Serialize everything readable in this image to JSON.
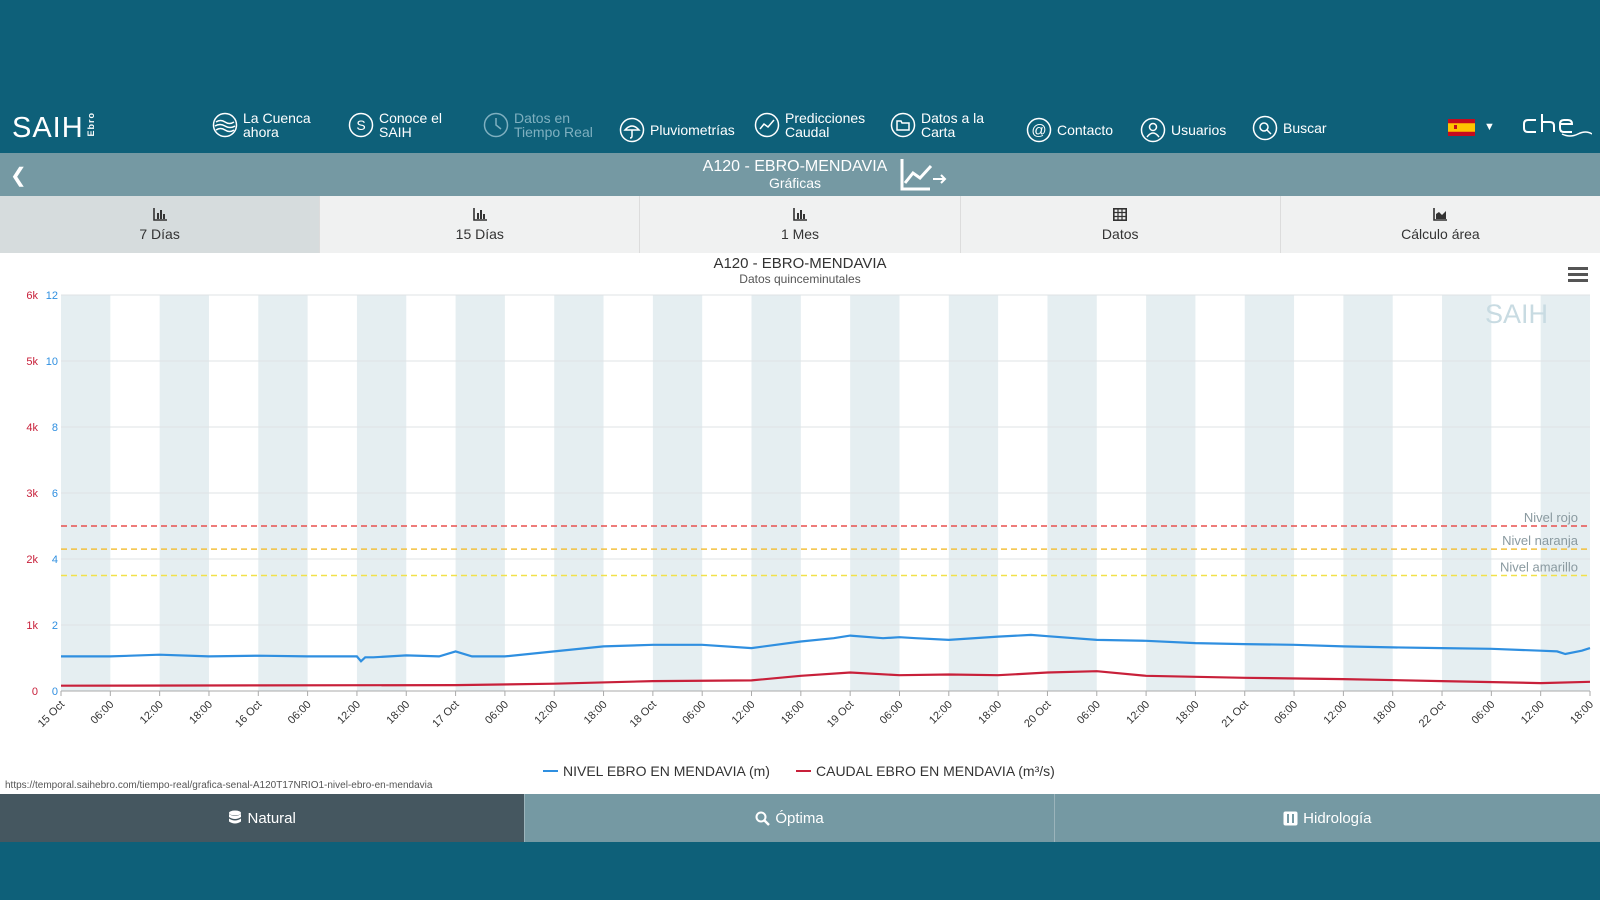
{
  "nav": {
    "logo": "SAIH",
    "logo_sub": "Ebro",
    "items": [
      {
        "line1": "La Cuenca",
        "line2": "ahora",
        "icon": "waves-icon"
      },
      {
        "line1": "Conoce el",
        "line2": "SAIH",
        "icon": "info-s-icon"
      },
      {
        "line1": "Datos en",
        "line2": "Tiempo Real",
        "icon": "clock-icon"
      },
      {
        "line1": "Pluviometrías",
        "line2": "",
        "icon": "umbrella-icon"
      },
      {
        "line1": "Predicciones",
        "line2": "Caudal",
        "icon": "trend-icon"
      },
      {
        "line1": "Datos a la",
        "line2": "Carta",
        "icon": "folder-icon"
      },
      {
        "line1": "Contacto",
        "line2": "",
        "icon": "at-icon"
      },
      {
        "line1": "Usuarios",
        "line2": "",
        "icon": "user-icon"
      },
      {
        "line1": "Buscar",
        "line2": "",
        "icon": "search-icon"
      }
    ]
  },
  "titlebar": {
    "title": "A120 - EBRO-MENDAVIA",
    "subtitle": "Gráficas"
  },
  "tabs": [
    {
      "label": "7 Días",
      "icon": "bar-chart-icon"
    },
    {
      "label": "15 Días",
      "icon": "bar-chart-icon"
    },
    {
      "label": "1 Mes",
      "icon": "bar-chart-icon"
    },
    {
      "label": "Datos",
      "icon": "table-icon"
    },
    {
      "label": "Cálculo área",
      "icon": "area-chart-icon"
    }
  ],
  "url": "https://temporal.saihebro.com/tiempo-real/grafica-senal-A120T17NRIO1-nivel-ebro-en-mendavia",
  "bottom": {
    "natural": "Natural",
    "optima": "Óptima",
    "hidrologia": "Hidrología"
  },
  "colors": {
    "accent": "#0e6079",
    "level": "#2f8fe0",
    "flow": "#c8203a",
    "rojo": "#e8514f",
    "naranja": "#f2c03e",
    "amarillo": "#f1e14a"
  },
  "chart_data": {
    "type": "line",
    "title": "A120 - EBRO-MENDAVIA",
    "subtitle": "Datos quinceminutales",
    "watermark": "SAIH",
    "x_range": [
      "2024-10-15 00:00",
      "2024-10-22 18:00"
    ],
    "x_tick_labels": [
      "15 Oct",
      "06:00",
      "12:00",
      "18:00",
      "16 Oct",
      "06:00",
      "12:00",
      "18:00",
      "17 Oct",
      "06:00",
      "12:00",
      "18:00",
      "18 Oct",
      "06:00",
      "12:00",
      "18:00",
      "19 Oct",
      "06:00",
      "12:00",
      "18:00",
      "20 Oct",
      "06:00",
      "12:00",
      "18:00",
      "21 Oct",
      "06:00",
      "12:00",
      "18:00",
      "22 Oct",
      "06:00",
      "12:00",
      "18:00"
    ],
    "y_axis_left_flow": {
      "ticks": [
        "0",
        "1k",
        "2k",
        "3k",
        "4k",
        "5k",
        "6k"
      ],
      "range": [
        0,
        6000
      ]
    },
    "y_axis_level": {
      "ticks": [
        "0",
        "2",
        "4",
        "6",
        "8",
        "10",
        "12"
      ],
      "range": [
        0,
        12
      ]
    },
    "thresholds": [
      {
        "name": "Nivel rojo",
        "value": 5.0
      },
      {
        "name": "Nivel naranja",
        "value": 4.3
      },
      {
        "name": "Nivel amarillo",
        "value": 3.5
      }
    ],
    "grid": true,
    "legend_position": "bottom-center",
    "series": [
      {
        "name": "NIVEL EBRO EN MENDAVIA (m)",
        "axis": "level",
        "x_hours": [
          0,
          6,
          12,
          18,
          24,
          30,
          36,
          36.5,
          37,
          38,
          42,
          46,
          48,
          50,
          54,
          60,
          66,
          72,
          78,
          84,
          90,
          94,
          96,
          100,
          102,
          104,
          108,
          114,
          118,
          120,
          126,
          132,
          138,
          144,
          150,
          156,
          162,
          168,
          174,
          180,
          182,
          183,
          185,
          186
        ],
        "values": [
          1.05,
          1.05,
          1.1,
          1.05,
          1.07,
          1.05,
          1.05,
          0.9,
          1.02,
          1.02,
          1.08,
          1.05,
          1.2,
          1.05,
          1.05,
          1.2,
          1.35,
          1.4,
          1.4,
          1.3,
          1.5,
          1.6,
          1.68,
          1.6,
          1.63,
          1.6,
          1.55,
          1.65,
          1.7,
          1.66,
          1.55,
          1.52,
          1.45,
          1.42,
          1.4,
          1.35,
          1.32,
          1.3,
          1.28,
          1.22,
          1.2,
          1.12,
          1.22,
          1.3
        ]
      },
      {
        "name": "CAUDAL EBRO EN MENDAVIA (m³/s)",
        "axis": "flow",
        "x_hours": [
          0,
          24,
          48,
          60,
          72,
          84,
          90,
          96,
          102,
          108,
          114,
          120,
          126,
          132,
          144,
          156,
          168,
          180,
          186
        ],
        "values": [
          80,
          85,
          90,
          110,
          150,
          160,
          230,
          280,
          240,
          250,
          240,
          280,
          300,
          230,
          200,
          180,
          150,
          120,
          140
        ]
      }
    ]
  }
}
